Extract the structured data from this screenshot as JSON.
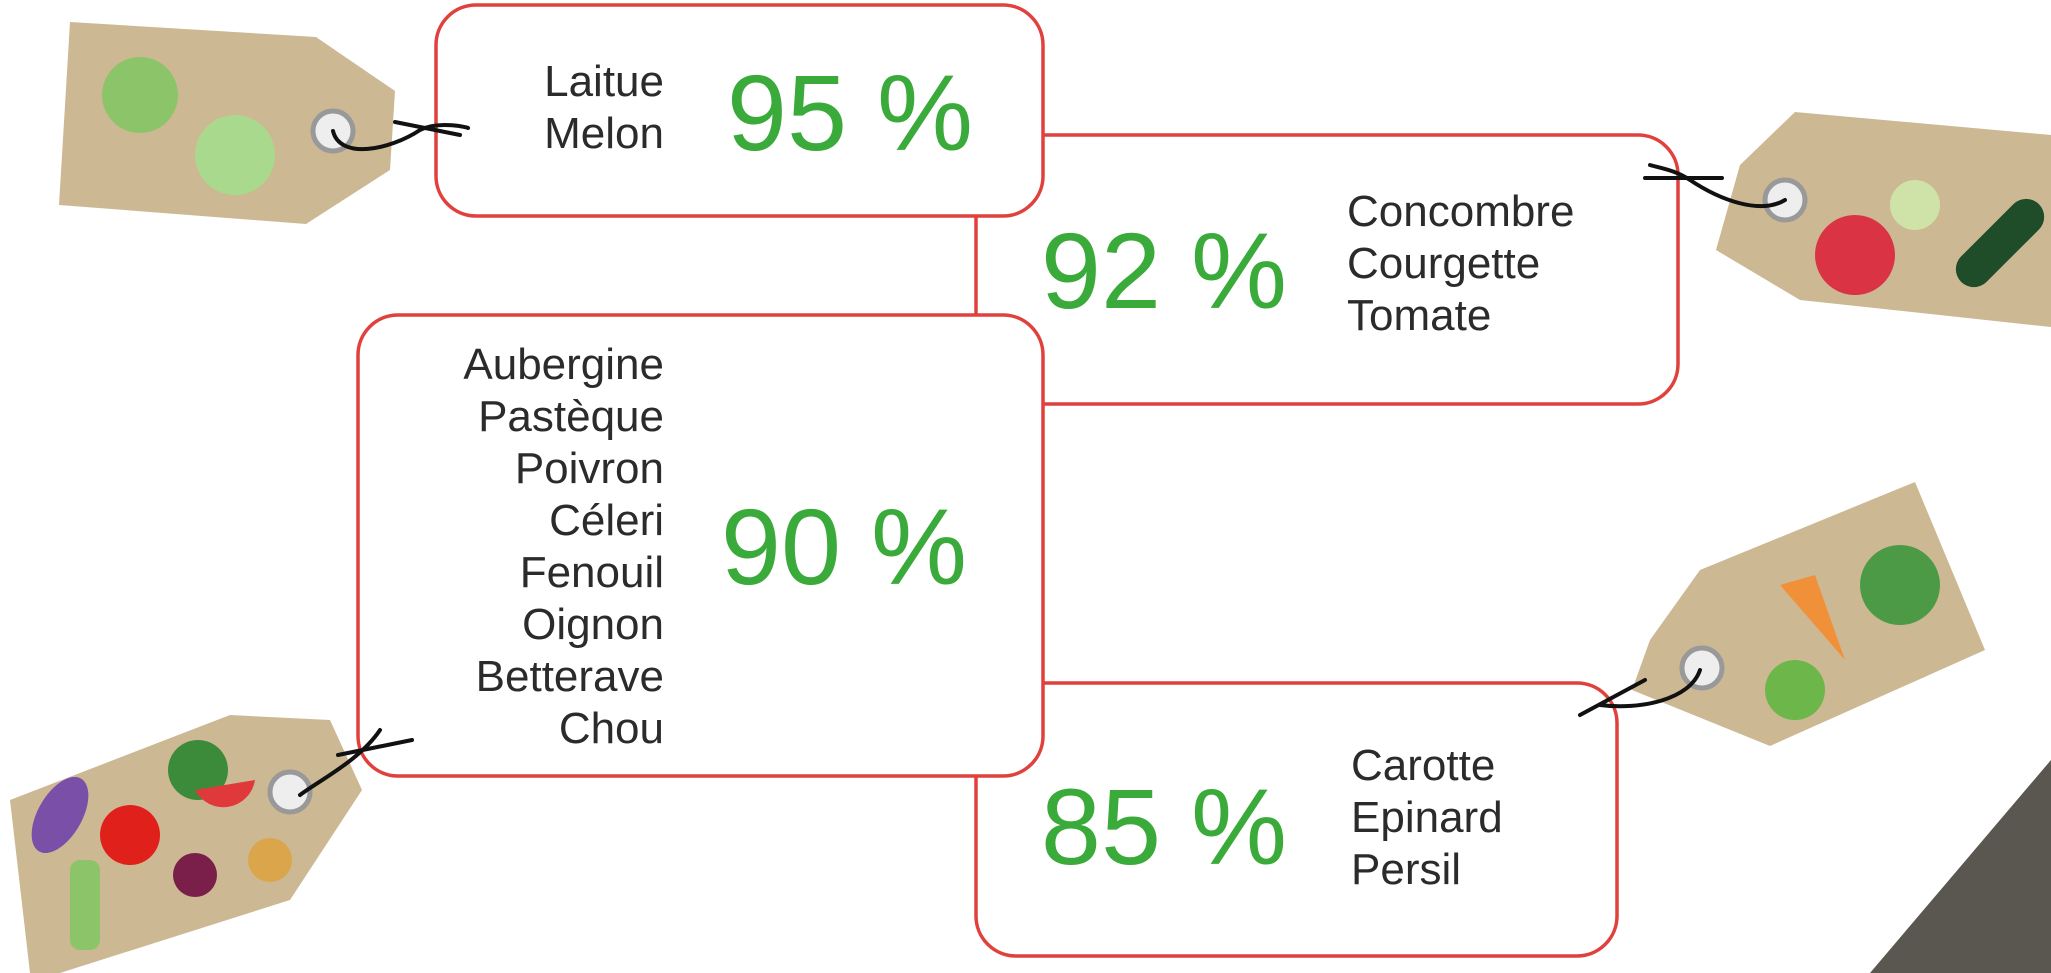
{
  "boxes": [
    {
      "percent": "95 %",
      "items": [
        "Laitue",
        "Melon"
      ]
    },
    {
      "percent": "92 %",
      "items": [
        "Concombre",
        "Courgette",
        "Tomate"
      ]
    },
    {
      "percent": "90 %",
      "items": [
        "Aubergine",
        "Pastèque",
        "Poivron",
        "Céleri",
        "Fenouil",
        "Oignon",
        "Betterave",
        "Chou"
      ]
    },
    {
      "percent": "85 %",
      "items": [
        "Carotte",
        "Epinard",
        "Persil"
      ]
    }
  ]
}
